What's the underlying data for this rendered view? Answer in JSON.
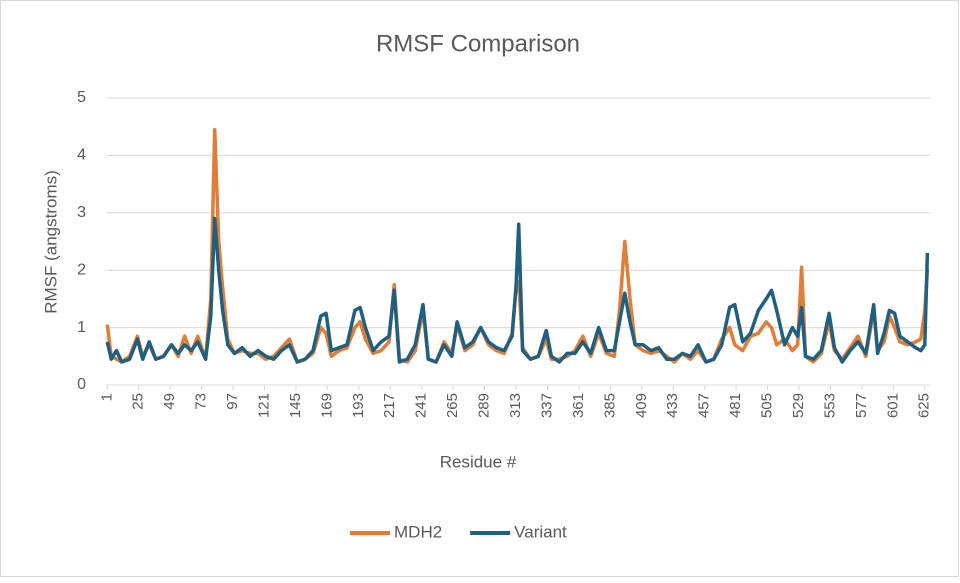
{
  "chart_data": {
    "type": "line",
    "title": "RMSF Comparison",
    "x_label": "Residue #",
    "y_label": "RMSF (angstroms)",
    "x": [
      1,
      4,
      8,
      12,
      18,
      24,
      28,
      33,
      38,
      44,
      50,
      55,
      60,
      65,
      70,
      76,
      80,
      83,
      86,
      89,
      93,
      98,
      104,
      110,
      116,
      122,
      128,
      134,
      140,
      146,
      152,
      158,
      164,
      168,
      172,
      178,
      184,
      190,
      194,
      198,
      204,
      210,
      216,
      220,
      224,
      230,
      236,
      242,
      246,
      252,
      258,
      264,
      268,
      274,
      280,
      286,
      292,
      298,
      304,
      310,
      313,
      315,
      318,
      324,
      330,
      336,
      340,
      346,
      352,
      358,
      364,
      370,
      376,
      382,
      388,
      392,
      396,
      400,
      404,
      410,
      416,
      422,
      428,
      434,
      440,
      446,
      452,
      458,
      464,
      470,
      476,
      480,
      486,
      492,
      498,
      504,
      508,
      512,
      518,
      524,
      528,
      531,
      534,
      540,
      546,
      552,
      556,
      562,
      568,
      574,
      580,
      586,
      589,
      594,
      598,
      602,
      606,
      612,
      618,
      622,
      625,
      627
    ],
    "series": [
      {
        "name": "MDH2",
        "color": "#df7d3a",
        "values": [
          1.05,
          0.5,
          0.45,
          0.4,
          0.5,
          0.85,
          0.5,
          0.7,
          0.45,
          0.5,
          0.7,
          0.5,
          0.85,
          0.55,
          0.85,
          0.45,
          1.5,
          4.45,
          2.5,
          1.7,
          0.8,
          0.55,
          0.6,
          0.55,
          0.55,
          0.45,
          0.5,
          0.65,
          0.8,
          0.4,
          0.45,
          0.55,
          1.0,
          0.9,
          0.5,
          0.6,
          0.65,
          1.0,
          1.1,
          0.8,
          0.55,
          0.6,
          0.75,
          1.75,
          0.45,
          0.4,
          0.6,
          1.3,
          0.45,
          0.4,
          0.75,
          0.55,
          1.05,
          0.6,
          0.7,
          1.0,
          0.7,
          0.6,
          0.55,
          0.9,
          1.7,
          1.8,
          0.65,
          0.45,
          0.5,
          0.8,
          0.45,
          0.45,
          0.5,
          0.6,
          0.85,
          0.5,
          0.9,
          0.55,
          0.5,
          1.3,
          2.5,
          1.5,
          0.7,
          0.6,
          0.55,
          0.6,
          0.5,
          0.4,
          0.55,
          0.45,
          0.6,
          0.4,
          0.45,
          0.8,
          1.0,
          0.7,
          0.6,
          0.85,
          0.9,
          1.1,
          1.0,
          0.7,
          0.8,
          0.6,
          0.7,
          2.05,
          0.5,
          0.4,
          0.55,
          1.1,
          0.6,
          0.45,
          0.65,
          0.85,
          0.5,
          1.3,
          0.6,
          0.75,
          1.2,
          1.0,
          0.75,
          0.7,
          0.75,
          0.8,
          1.3,
          2.0
        ]
      },
      {
        "name": "Variant",
        "color": "#215f7e",
        "values": [
          0.75,
          0.45,
          0.6,
          0.4,
          0.45,
          0.8,
          0.45,
          0.75,
          0.45,
          0.5,
          0.7,
          0.55,
          0.7,
          0.6,
          0.75,
          0.45,
          1.2,
          2.9,
          2.0,
          1.3,
          0.7,
          0.55,
          0.65,
          0.5,
          0.6,
          0.5,
          0.45,
          0.6,
          0.7,
          0.4,
          0.45,
          0.6,
          1.2,
          1.25,
          0.6,
          0.65,
          0.7,
          1.3,
          1.35,
          1.0,
          0.6,
          0.75,
          0.85,
          1.65,
          0.4,
          0.45,
          0.7,
          1.4,
          0.45,
          0.4,
          0.7,
          0.5,
          1.1,
          0.65,
          0.75,
          1.0,
          0.75,
          0.65,
          0.6,
          0.85,
          1.7,
          2.8,
          0.6,
          0.45,
          0.5,
          0.95,
          0.5,
          0.4,
          0.55,
          0.55,
          0.75,
          0.55,
          1.0,
          0.6,
          0.6,
          1.1,
          1.6,
          1.1,
          0.7,
          0.7,
          0.6,
          0.65,
          0.45,
          0.45,
          0.55,
          0.5,
          0.7,
          0.4,
          0.45,
          0.7,
          1.35,
          1.4,
          0.75,
          0.9,
          1.3,
          1.5,
          1.65,
          1.3,
          0.7,
          1.0,
          0.85,
          1.35,
          0.5,
          0.45,
          0.6,
          1.25,
          0.65,
          0.4,
          0.6,
          0.75,
          0.55,
          1.4,
          0.55,
          0.9,
          1.3,
          1.25,
          0.85,
          0.75,
          0.65,
          0.6,
          0.7,
          2.3
        ]
      }
    ],
    "xlim": [
      0,
      629
    ],
    "xticks": [
      1,
      25,
      49,
      73,
      97,
      121,
      145,
      169,
      193,
      217,
      241,
      265,
      289,
      313,
      337,
      361,
      385,
      409,
      433,
      457,
      481,
      505,
      529,
      553,
      577,
      601,
      625
    ],
    "ylim": [
      0,
      5
    ],
    "yticks": [
      0,
      1,
      2,
      3,
      4,
      5
    ],
    "grid": true,
    "legend": "bottom"
  }
}
